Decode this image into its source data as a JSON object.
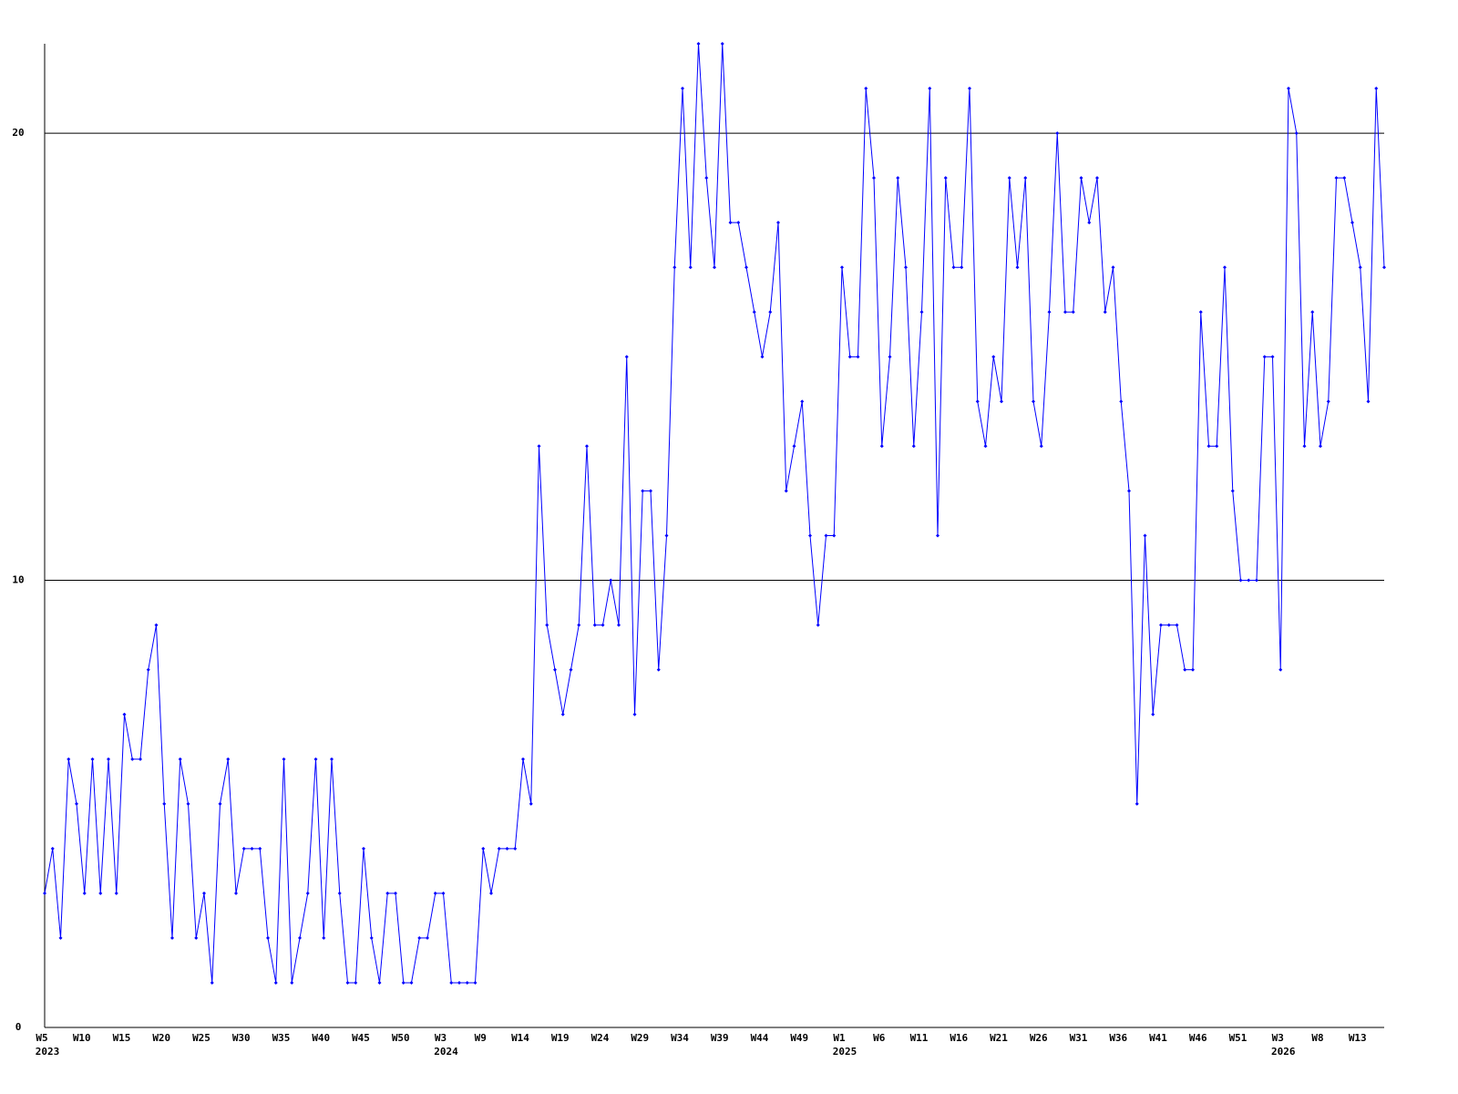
{
  "chart_data": {
    "type": "line",
    "color": "#0000ff",
    "grid": true,
    "ylim": [
      0,
      22
    ],
    "yticks": [
      0,
      10,
      20
    ],
    "categories": [
      "W5",
      null,
      null,
      null,
      null,
      "W10",
      null,
      null,
      null,
      null,
      "W15",
      null,
      null,
      null,
      null,
      "W20",
      null,
      null,
      null,
      null,
      "W25",
      null,
      null,
      null,
      null,
      "W30",
      null,
      null,
      null,
      null,
      "W35",
      null,
      null,
      null,
      null,
      "W40",
      null,
      null,
      null,
      null,
      "W45",
      null,
      null,
      null,
      null,
      "W50",
      null,
      null,
      null,
      null,
      "W3",
      null,
      null,
      null,
      null,
      "W9",
      null,
      null,
      null,
      null,
      "W14",
      null,
      null,
      null,
      null,
      "W19",
      null,
      null,
      null,
      null,
      "W24",
      null,
      null,
      null,
      null,
      "W29",
      null,
      null,
      null,
      null,
      "W34",
      null,
      null,
      null,
      null,
      "W39",
      null,
      null,
      null,
      null,
      "W44",
      null,
      null,
      null,
      null,
      "W49",
      null,
      null,
      null,
      null,
      "W1",
      null,
      null,
      null,
      null,
      "W6",
      null,
      null,
      null,
      null,
      "W11",
      null,
      null,
      null,
      null,
      "W16",
      null,
      null,
      null,
      null,
      "W21",
      null,
      null,
      null,
      null,
      "W26",
      null,
      null,
      null,
      null,
      "W31",
      null,
      null,
      null,
      null,
      "W36",
      null,
      null,
      null,
      null,
      "W41",
      null,
      null,
      null,
      null,
      "W46",
      null,
      null,
      null,
      null,
      "W51",
      null,
      null,
      null,
      null,
      "W3",
      null,
      null,
      null,
      null,
      "W8",
      null,
      null,
      null,
      null,
      "W13",
      null,
      null,
      null
    ],
    "year_labels": [
      "2023",
      null,
      null,
      null,
      null,
      null,
      null,
      null,
      null,
      null,
      null,
      null,
      null,
      null,
      null,
      null,
      null,
      null,
      null,
      null,
      null,
      null,
      null,
      null,
      null,
      null,
      null,
      null,
      null,
      null,
      null,
      null,
      null,
      null,
      null,
      null,
      null,
      null,
      null,
      null,
      null,
      null,
      null,
      null,
      null,
      null,
      null,
      null,
      null,
      null,
      "2024",
      null,
      null,
      null,
      null,
      null,
      null,
      null,
      null,
      null,
      null,
      null,
      null,
      null,
      null,
      null,
      null,
      null,
      null,
      null,
      null,
      null,
      null,
      null,
      null,
      null,
      null,
      null,
      null,
      null,
      null,
      null,
      null,
      null,
      null,
      null,
      null,
      null,
      null,
      null,
      null,
      null,
      null,
      null,
      null,
      null,
      null,
      null,
      null,
      null,
      "2025",
      null,
      null,
      null,
      null,
      null,
      null,
      null,
      null,
      null,
      null,
      null,
      null,
      null,
      null,
      null,
      null,
      null,
      null,
      null,
      null,
      null,
      null,
      null,
      null,
      null,
      null,
      null,
      null,
      null,
      null,
      null,
      null,
      null,
      null,
      null,
      null,
      null,
      null,
      null,
      null,
      null,
      null,
      null,
      null,
      null,
      null,
      null,
      null,
      null,
      null,
      null,
      null,
      null,
      null,
      "2026",
      null,
      null,
      null,
      null,
      null,
      null,
      null,
      null,
      null,
      null,
      null,
      null,
      null
    ],
    "values": [
      3,
      4,
      2,
      6,
      5,
      3,
      6,
      3,
      6,
      3,
      7,
      6,
      6,
      8,
      9,
      5,
      2,
      6,
      5,
      2,
      3,
      1,
      5,
      6,
      3,
      4,
      4,
      4,
      2,
      1,
      6,
      1,
      2,
      3,
      6,
      2,
      6,
      3,
      1,
      1,
      4,
      2,
      1,
      3,
      3,
      1,
      1,
      2,
      2,
      3,
      3,
      1,
      1,
      1,
      1,
      4,
      3,
      4,
      4,
      4,
      6,
      5,
      13,
      9,
      8,
      7,
      8,
      9,
      13,
      9,
      9,
      10,
      9,
      15,
      7,
      12,
      12,
      8,
      11,
      17,
      21,
      17,
      22,
      19,
      17,
      22,
      18,
      18,
      17,
      16,
      15,
      16,
      18,
      12,
      13,
      14,
      11,
      9,
      11,
      11,
      17,
      15,
      15,
      21,
      19,
      13,
      15,
      19,
      17,
      13,
      16,
      21,
      11,
      19,
      17,
      17,
      21,
      14,
      13,
      15,
      14,
      19,
      17,
      19,
      14,
      13,
      16,
      20,
      16,
      16,
      19,
      18,
      19,
      16,
      17,
      14,
      12,
      5,
      11,
      7,
      9,
      9,
      9,
      8,
      8,
      16,
      13,
      13,
      17,
      12,
      10,
      10,
      10,
      15,
      15,
      8,
      21,
      20,
      13,
      16,
      13,
      14,
      19,
      19,
      18,
      17,
      14,
      21,
      17
    ]
  }
}
